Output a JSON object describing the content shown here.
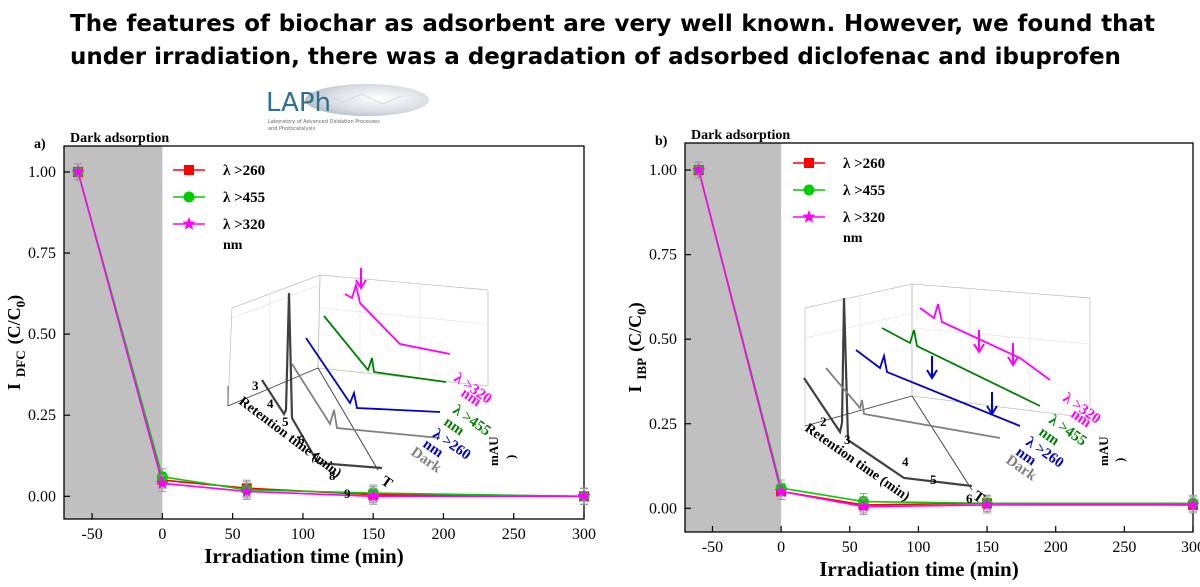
{
  "headline": "The features of biochar as adsorbent are very well known. However, we found that under irradiation, there was a degradation of adsorbed diclofenac and ibuprofen",
  "logo": {
    "text": "LAPh",
    "subtitle_line1": "Laboratory of Advanced Oxidation Processes",
    "subtitle_line2": "and Photocatalysis"
  },
  "chart_data": [
    {
      "type": "line",
      "panel_label": "a)",
      "region_label": "Dark adsorption",
      "dark_region": [
        -70,
        0
      ],
      "xlabel": "Irradiation time (min)",
      "ylabel_main": "I",
      "ylabel_sub": "DFC",
      "ylabel_tail": "(C/C",
      "ylabel_sub2": "0",
      "ylabel_end": ")",
      "xlim": [
        -70,
        300
      ],
      "ylim": [
        -0.07,
        1.08
      ],
      "xticks": [
        -50,
        0,
        50,
        100,
        150,
        200,
        250,
        300
      ],
      "yticks": [
        0.0,
        0.25,
        0.5,
        0.75,
        1.0
      ],
      "ytick_labels": [
        "0.00",
        "0.25",
        "0.50",
        "0.75",
        "1.00"
      ],
      "legend_position": "top-left",
      "legend_unit": "nm",
      "series": [
        {
          "name": "λ >260",
          "color": "#ff0000",
          "marker": "square",
          "x": [
            -60,
            0,
            60,
            150,
            300
          ],
          "y": [
            1.0,
            0.05,
            0.025,
            0.005,
            0.0
          ]
        },
        {
          "name": "λ >455",
          "color": "#00cc00",
          "marker": "circle",
          "x": [
            -60,
            0,
            60,
            150,
            300
          ],
          "y": [
            1.0,
            0.06,
            0.02,
            0.01,
            0.0
          ]
        },
        {
          "name": "λ >320",
          "color": "#ff00ff",
          "marker": "star",
          "x": [
            -60,
            0,
            60,
            150,
            300
          ],
          "y": [
            1.0,
            0.04,
            0.015,
            0.0,
            0.0
          ]
        }
      ],
      "inset": {
        "xlabel": "Retention time (min)",
        "zlabel": "mAU",
        "zlabel_tail": ")",
        "xticks": [
          "3",
          "4",
          "5",
          "6",
          "7",
          "8",
          "9"
        ],
        "traces": [
          {
            "name": "λ >320",
            "unit": "nm",
            "color": "#ff00ff"
          },
          {
            "name": "λ >455",
            "unit": "nm",
            "color": "#008000"
          },
          {
            "name": "λ >260",
            "unit": "nm",
            "color": "#0000cc"
          },
          {
            "name": "T",
            "unit": "",
            "color": "#808080"
          },
          {
            "name": "Dark",
            "unit": "",
            "color": "#404040"
          }
        ]
      }
    },
    {
      "type": "line",
      "panel_label": "b)",
      "region_label": "Dark adsorption",
      "dark_region": [
        -70,
        0
      ],
      "xlabel": "Irradiation time (min)",
      "ylabel_main": "I",
      "ylabel_sub": "IBP",
      "ylabel_tail": "(C/C",
      "ylabel_sub2": "0",
      "ylabel_end": ")",
      "xlim": [
        -70,
        300
      ],
      "ylim": [
        -0.07,
        1.08
      ],
      "xticks": [
        -50,
        0,
        50,
        100,
        150,
        200,
        250,
        300
      ],
      "yticks": [
        0.0,
        0.25,
        0.5,
        0.75,
        1.0
      ],
      "ytick_labels": [
        "0.00",
        "0.25",
        "0.50",
        "0.75",
        "1.00"
      ],
      "legend_position": "top-left",
      "legend_unit": "nm",
      "series": [
        {
          "name": "λ >260",
          "color": "#ff0000",
          "marker": "square",
          "x": [
            -60,
            0,
            60,
            150,
            300
          ],
          "y": [
            1.0,
            0.05,
            0.01,
            0.015,
            0.01
          ]
        },
        {
          "name": "λ >455",
          "color": "#00cc00",
          "marker": "circle",
          "x": [
            -60,
            0,
            60,
            150,
            300
          ],
          "y": [
            1.0,
            0.06,
            0.02,
            0.015,
            0.015
          ]
        },
        {
          "name": "λ >320",
          "color": "#ff00ff",
          "marker": "star",
          "x": [
            -60,
            0,
            60,
            150,
            300
          ],
          "y": [
            1.0,
            0.05,
            0.005,
            0.01,
            0.01
          ]
        }
      ],
      "inset": {
        "xlabel": "Retention time (min)",
        "zlabel": "mAU",
        "zlabel_tail": ")",
        "xticks": [
          "2",
          "3",
          "4",
          "5",
          "6"
        ],
        "traces": [
          {
            "name": "λ >320",
            "unit": "nm",
            "color": "#ff00ff"
          },
          {
            "name": "λ >455",
            "unit": "nm",
            "color": "#008000"
          },
          {
            "name": "λ >260",
            "unit": "nm",
            "color": "#0000cc"
          },
          {
            "name": "T",
            "unit": "",
            "color": "#808080"
          },
          {
            "name": "Dark",
            "unit": "",
            "color": "#404040"
          }
        ]
      }
    }
  ]
}
